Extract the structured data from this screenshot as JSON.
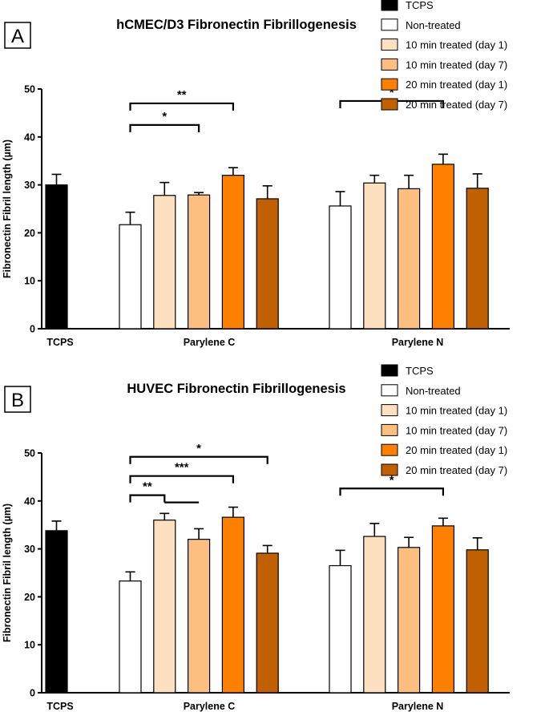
{
  "chart_data": [
    {
      "type": "bar",
      "panel_label": "A",
      "title": "hCMEC/D3 Fibronectin Fibrillogenesis",
      "xlabel": "",
      "ylabel": "Fibronectin Fibril length (µm)",
      "ylim": [
        0,
        50
      ],
      "yticks": [
        0,
        10,
        20,
        30,
        40,
        50
      ],
      "legend_position": "top-right",
      "groups": [
        {
          "label": "TCPS",
          "bars": [
            {
              "series": "TCPS",
              "value": 30,
              "error": 2.2
            }
          ]
        },
        {
          "label": "Parylene C",
          "bars": [
            {
              "series": "Non-treated",
              "value": 21.7,
              "error": 2.6
            },
            {
              "series": "10 min treated (day 1)",
              "value": 27.8,
              "error": 2.7
            },
            {
              "series": "10 min treated (day 7)",
              "value": 27.9,
              "error": 0.5
            },
            {
              "series": "20 min treated (day 1)",
              "value": 32,
              "error": 1.6
            },
            {
              "series": "20 min treated (day 7)",
              "value": 27.1,
              "error": 2.7
            }
          ]
        },
        {
          "label": "Parylene N",
          "bars": [
            {
              "series": "Non-treated",
              "value": 25.6,
              "error": 3
            },
            {
              "series": "10 min treated (day 1)",
              "value": 30.4,
              "error": 1.6
            },
            {
              "series": "10 min treated (day 7)",
              "value": 29.2,
              "error": 2.8
            },
            {
              "series": "20 min treated (day 1)",
              "value": 34.3,
              "error": 2.1
            },
            {
              "series": "20 min treated (day 7)",
              "value": 29.3,
              "error": 3
            }
          ]
        }
      ],
      "significance": [
        {
          "group": "Parylene C",
          "from": "Non-treated",
          "to": "10 min treated (day 7)",
          "label": "*",
          "level": 42.5
        },
        {
          "group": "Parylene C",
          "from": "Non-treated",
          "to": "20 min treated (day 1)",
          "label": "**",
          "level": 47
        },
        {
          "group": "Parylene N",
          "from": "Non-treated",
          "to": "20 min treated (day 1)",
          "label": "*",
          "level": 47.5
        }
      ]
    },
    {
      "type": "bar",
      "panel_label": "B",
      "title": "HUVEC Fibronectin Fibrillogenesis",
      "xlabel": "",
      "ylabel": "Fibronectin Fibril length (µm)",
      "ylim": [
        0,
        50
      ],
      "yticks": [
        0,
        10,
        20,
        30,
        40,
        50
      ],
      "legend_position": "top-right",
      "groups": [
        {
          "label": "TCPS",
          "bars": [
            {
              "series": "TCPS",
              "value": 33.8,
              "error": 2
            }
          ]
        },
        {
          "label": "Parylene C",
          "bars": [
            {
              "series": "Non-treated",
              "value": 23.3,
              "error": 1.9
            },
            {
              "series": "10 min treated (day 1)",
              "value": 36,
              "error": 1.4
            },
            {
              "series": "10 min treated (day 7)",
              "value": 32,
              "error": 2.2
            },
            {
              "series": "20 min treated (day 1)",
              "value": 36.6,
              "error": 2.1
            },
            {
              "series": "20 min treated (day 7)",
              "value": 29.1,
              "error": 1.6
            }
          ]
        },
        {
          "label": "Parylene N",
          "bars": [
            {
              "series": "Non-treated",
              "value": 26.5,
              "error": 3.2
            },
            {
              "series": "10 min treated (day 1)",
              "value": 32.6,
              "error": 2.7
            },
            {
              "series": "10 min treated (day 7)",
              "value": 30.3,
              "error": 2.1
            },
            {
              "series": "20 min treated (day 1)",
              "value": 34.8,
              "error": 1.6
            },
            {
              "series": "20 min treated (day 7)",
              "value": 29.8,
              "error": 2.5
            }
          ]
        }
      ],
      "significance": [
        {
          "group": "Parylene C",
          "from": "Non-treated",
          "to": "10 min treated (day 1)",
          "label": "**",
          "level": 41.2,
          "extra_to": "10 min treated (day 7)"
        },
        {
          "group": "Parylene C",
          "from": "Non-treated",
          "to": "20 min treated (day 1)",
          "label": "***",
          "level": 45.2
        },
        {
          "group": "Parylene C",
          "from": "Non-treated",
          "to": "20 min treated (day 7)",
          "label": "*",
          "level": 49.2
        },
        {
          "group": "Parylene N",
          "from": "Non-treated",
          "to": "20 min treated (day 1)",
          "label": "*",
          "level": 42.6
        }
      ]
    }
  ],
  "legend": [
    {
      "name": "TCPS",
      "color": "#000000"
    },
    {
      "name": "Non-treated",
      "color": "#ffffff"
    },
    {
      "name": "10 min treated (day 1)",
      "color": "#fde0c0"
    },
    {
      "name": "10 min treated (day 7)",
      "color": "#fdbf7f"
    },
    {
      "name": "20 min treated (day 1)",
      "color": "#fd8000"
    },
    {
      "name": "20 min treated (day 7)",
      "color": "#c06000"
    }
  ]
}
